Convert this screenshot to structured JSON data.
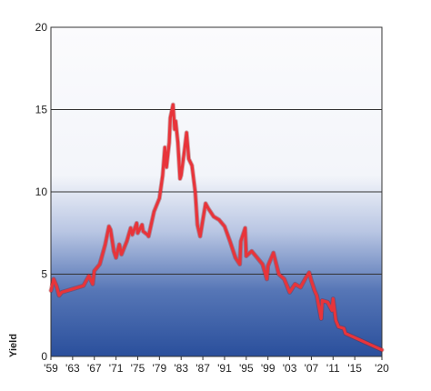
{
  "chart_data": {
    "type": "line",
    "title": "",
    "xlabel": "",
    "ylabel": "Yield",
    "xlim": [
      1959,
      2020
    ],
    "ylim": [
      0,
      20
    ],
    "yticks": [
      0,
      5,
      10,
      15,
      20
    ],
    "ytick_labels": [
      "0",
      "5",
      "10",
      "15",
      "20"
    ],
    "xticks": [
      1959,
      1963,
      1967,
      1971,
      1975,
      1979,
      1983,
      1987,
      1991,
      1995,
      1999,
      2003,
      2007,
      2011,
      2015,
      2020
    ],
    "xtick_labels": [
      "'59",
      "'63",
      "'67",
      "'71",
      "'75",
      "'79",
      "'83",
      "'87",
      "'91",
      "'95",
      "'99",
      "'03",
      "'07",
      "'11",
      "'15",
      "'20"
    ],
    "grid": "horizontal",
    "line_color": "#e8343a",
    "background_gradient": [
      "#ffffff",
      "#2a4f9c"
    ],
    "series": [
      {
        "x": [
          1959,
          1959.5,
          1960,
          1960.5,
          1961,
          1962,
          1963,
          1964,
          1965,
          1966,
          1966.7,
          1967,
          1968,
          1969,
          1969.7,
          1970,
          1970.6,
          1971,
          1971.6,
          1972,
          1973,
          1973.7,
          1974,
          1974.8,
          1975,
          1975.8,
          1976,
          1976.8,
          1977,
          1978,
          1979,
          1979.6,
          1980,
          1980.3,
          1980.8,
          1981,
          1981.5,
          1981.8,
          1982,
          1982.4,
          1982.8,
          1983,
          1983.6,
          1984,
          1984.4,
          1985,
          1985.6,
          1986,
          1986.5,
          1987,
          1987.5,
          1988,
          1989,
          1990,
          1991,
          1992,
          1993,
          1993.8,
          1994,
          1994.8,
          1995,
          1996,
          1997,
          1998,
          1998.8,
          1999,
          2000,
          2001,
          2002,
          2003,
          2004,
          2005,
          2006,
          2006.6,
          2007,
          2007.6,
          2008,
          2008.8,
          2009,
          2010,
          2010.8,
          2011,
          2011.5,
          2012,
          2013,
          2013.3,
          2020
        ],
        "y": [
          4.0,
          4.7,
          4.3,
          3.7,
          3.9,
          4.0,
          4.1,
          4.2,
          4.3,
          4.9,
          4.4,
          5.2,
          5.6,
          6.8,
          7.9,
          7.7,
          6.4,
          6.0,
          6.8,
          6.2,
          7.0,
          7.8,
          7.4,
          8.1,
          7.5,
          8.0,
          7.6,
          7.4,
          7.3,
          8.8,
          9.6,
          11.0,
          12.7,
          11.5,
          13.0,
          14.5,
          15.3,
          13.8,
          14.3,
          13.0,
          10.8,
          11.0,
          12.5,
          13.6,
          12.0,
          11.6,
          10.0,
          8.0,
          7.3,
          8.3,
          9.3,
          9.0,
          8.5,
          8.3,
          7.9,
          7.0,
          6.0,
          5.6,
          7.0,
          7.8,
          6.1,
          6.4,
          6.0,
          5.6,
          4.7,
          5.5,
          6.3,
          5.0,
          4.7,
          3.9,
          4.4,
          4.2,
          4.8,
          5.1,
          4.6,
          4.0,
          3.7,
          2.3,
          3.4,
          3.3,
          2.8,
          3.5,
          2.2,
          1.8,
          1.7,
          1.4,
          0.4
        ]
      }
    ]
  }
}
